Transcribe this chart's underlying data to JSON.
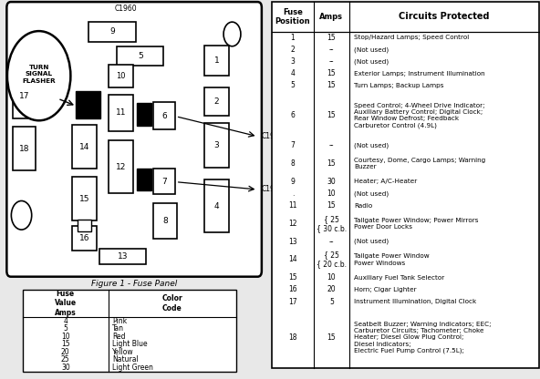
{
  "fuse_color_rows": [
    [
      "4",
      "Pink"
    ],
    [
      "5",
      "Tan"
    ],
    [
      "10",
      "Red"
    ],
    [
      "15",
      "Light Blue"
    ],
    [
      "20",
      "Yellow"
    ],
    [
      "25",
      "Natural"
    ],
    [
      "30",
      "Light Green"
    ]
  ],
  "right_rows": [
    [
      "1",
      "15",
      "Stop/Hazard Lamps; Speed Control"
    ],
    [
      "2",
      "--",
      "(Not used)"
    ],
    [
      "3",
      "--",
      "(Not used)"
    ],
    [
      "4",
      "15",
      "Exterior Lamps; Instrument Illumination"
    ],
    [
      "5",
      "15",
      "Turn Lamps; Backup Lamps"
    ],
    [
      "6",
      "15",
      "Speed Control; 4-Wheel Drive Indicator;\nAuxiliary Battery Control; Digital Clock;\nRear Window Defrost; Feedback\nCarburetor Control (4.9L)"
    ],
    [
      "7",
      "--",
      "(Not used)"
    ],
    [
      "8",
      "15",
      "Courtesy, Dome, Cargo Lamps; Warning\nBuzzer"
    ],
    [
      "9",
      "30",
      "Heater; A/C-Heater"
    ],
    [
      ".",
      "10",
      "(Not used)"
    ],
    [
      "11",
      "15",
      "Radio"
    ],
    [
      "12",
      "{ 25\n{ 30 c.b.",
      "Tailgate Power Window; Power Mirrors\nPower Door Locks"
    ],
    [
      "13",
      "--",
      "(Not used)"
    ],
    [
      "14",
      "{ 25\n{ 20 c.b.",
      "Tailgate Power Window\nPower Windows"
    ],
    [
      "15",
      "10",
      "Auxiliary Fuel Tank Selector"
    ],
    [
      "16",
      "20",
      "Horn; Cigar Lighter"
    ],
    [
      "17",
      "5",
      "Instrument Illumination, Digital Clock"
    ],
    [
      "18",
      "15",
      "Seatbelt Buzzer; Warning Indicators; EEC;\nCarburetor Circuits; Tachometer; Choke\nHeater; Diesel Glow Plug Control;\nDiesel Indicators;\nElectric Fuel Pump Control (7.5L);"
    ]
  ],
  "bg": "#e8e8e8",
  "white": "#ffffff",
  "black": "#000000"
}
